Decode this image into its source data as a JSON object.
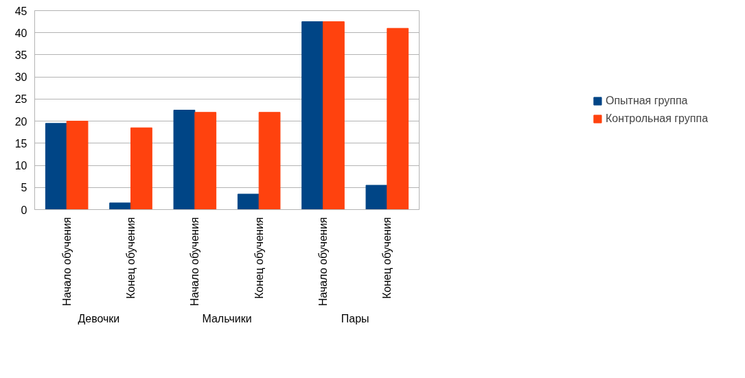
{
  "chart_data": {
    "type": "bar",
    "categories": [
      "Начало обучения",
      "Конец обучения",
      "Начало обучения",
      "Конец обучения",
      "Начало обучения",
      "Конец обучения"
    ],
    "series": [
      {
        "name": "Опытная группа",
        "color": "#004586",
        "values": [
          19.5,
          1.5,
          22.5,
          3.5,
          42.5,
          5.5
        ]
      },
      {
        "name": "Контрольная группа",
        "color": "#ff420e",
        "values": [
          20,
          18.5,
          22,
          22,
          42.5,
          41
        ]
      }
    ],
    "annotations": [
      "Девочки",
      "Мальчики",
      "Пары"
    ],
    "ylim": [
      0,
      45
    ],
    "yticks": [
      0,
      5,
      10,
      15,
      20,
      25,
      30,
      35,
      40,
      45
    ],
    "grid": "y",
    "legend": "right"
  }
}
